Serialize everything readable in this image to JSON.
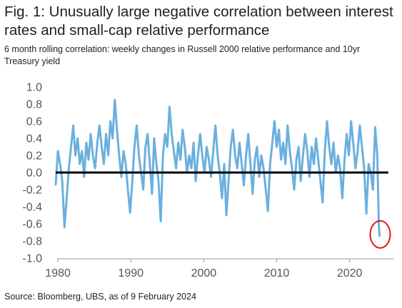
{
  "title": "Fig. 1: Unusually large negative correlation between interest rates and small-cap relative performance",
  "subtitle": "6 month rolling correlation: weekly changes in Russell 2000 relative performance and 10yr Treasury yield",
  "source": "Source: Bloomberg, UBS, as of 9 February 2024",
  "chart_data": {
    "type": "line",
    "title": "Fig. 1: Unusually large negative correlation between interest rates and small-cap relative performance",
    "subtitle": "6 month rolling correlation: weekly changes in Russell 2000 relative performance and 10yr Treasury yield",
    "xlabel": "",
    "ylabel": "",
    "xlim": [
      1979.5,
      2026.5
    ],
    "ylim": [
      -1.0,
      1.0
    ],
    "x_ticks": [
      1980,
      1990,
      2000,
      2010,
      2020
    ],
    "y_ticks": [
      1.0,
      0.8,
      0.6,
      0.4,
      0.2,
      0.0,
      -0.2,
      -0.4,
      -0.6,
      -0.8,
      -1.0
    ],
    "y_tick_labels": [
      "1.0",
      "0.8",
      "0.6",
      "0.4",
      "0.2",
      "0.0",
      "-0.2",
      "-0.4",
      "-0.6",
      "-0.8",
      "-1.0"
    ],
    "grid": false,
    "zero_line": true,
    "series_color": "#6ab0de",
    "zero_line_color": "#000000",
    "highlight_color": "#e0191b",
    "highlight": {
      "x": 2024.1,
      "y": -0.74
    },
    "series": [
      {
        "x": [
          1979.7,
          1980.0,
          1980.3,
          1980.6,
          1980.9,
          1981.2,
          1981.5,
          1981.8,
          1982.1,
          1982.4,
          1982.7,
          1983.0,
          1983.3,
          1983.6,
          1983.9,
          1984.2,
          1984.5,
          1984.8,
          1985.1,
          1985.4,
          1985.7,
          1986.0,
          1986.3,
          1986.6,
          1986.9,
          1987.2,
          1987.5,
          1987.8,
          1988.1,
          1988.4,
          1988.7,
          1989.0,
          1989.3,
          1989.6,
          1989.9,
          1990.2,
          1990.5,
          1990.8,
          1991.1,
          1991.4,
          1991.7,
          1992.0,
          1992.3,
          1992.6,
          1992.9,
          1993.2,
          1993.5,
          1993.8,
          1994.1,
          1994.4,
          1994.7,
          1995.0,
          1995.3,
          1995.6,
          1995.9,
          1996.2,
          1996.5,
          1996.8,
          1997.1,
          1997.4,
          1997.7,
          1998.0,
          1998.3,
          1998.6,
          1998.9,
          1999.2,
          1999.5,
          1999.8,
          2000.1,
          2000.4,
          2000.7,
          2001.0,
          2001.3,
          2001.6,
          2001.9,
          2002.2,
          2002.5,
          2002.8,
          2003.1,
          2003.4,
          2003.7,
          2004.0,
          2004.3,
          2004.6,
          2004.9,
          2005.2,
          2005.5,
          2005.8,
          2006.1,
          2006.4,
          2006.7,
          2007.0,
          2007.3,
          2007.6,
          2007.9,
          2008.2,
          2008.5,
          2008.8,
          2009.1,
          2009.4,
          2009.7,
          2010.0,
          2010.3,
          2010.6,
          2010.9,
          2011.2,
          2011.5,
          2011.8,
          2012.1,
          2012.4,
          2012.7,
          2013.0,
          2013.3,
          2013.6,
          2013.9,
          2014.2,
          2014.5,
          2014.8,
          2015.1,
          2015.4,
          2015.7,
          2016.0,
          2016.3,
          2016.6,
          2016.9,
          2017.2,
          2017.5,
          2017.8,
          2018.1,
          2018.4,
          2018.7,
          2019.0,
          2019.3,
          2019.6,
          2019.9,
          2020.2,
          2020.5,
          2020.8,
          2021.1,
          2021.4,
          2021.7,
          2022.0,
          2022.3,
          2022.6,
          2022.9,
          2023.2,
          2023.5,
          2023.8,
          2024.0,
          2024.1
        ],
        "values": [
          -0.14,
          0.25,
          0.1,
          -0.1,
          -0.64,
          -0.3,
          0.05,
          0.3,
          0.55,
          0.2,
          0.4,
          0.1,
          0.25,
          -0.05,
          0.35,
          0.15,
          0.45,
          0.2,
          0.05,
          0.35,
          0.55,
          0.3,
          0.1,
          0.45,
          0.2,
          0.6,
          0.4,
          0.85,
          0.5,
          0.2,
          -0.05,
          0.25,
          0.1,
          -0.2,
          -0.47,
          -0.1,
          0.3,
          0.55,
          0.2,
          0.0,
          -0.2,
          0.3,
          0.45,
          0.1,
          -0.25,
          0.4,
          0.1,
          -0.1,
          -0.57,
          0.2,
          0.45,
          0.3,
          0.77,
          0.45,
          0.25,
          0.05,
          0.35,
          0.15,
          0.5,
          0.3,
          0.0,
          0.2,
          0.05,
          0.35,
          -0.1,
          0.2,
          0.45,
          0.2,
          0.0,
          0.3,
          0.15,
          -0.05,
          0.25,
          0.55,
          0.2,
          0.0,
          -0.3,
          0.1,
          -0.5,
          -0.1,
          0.3,
          0.5,
          0.2,
          0.05,
          0.35,
          0.1,
          -0.15,
          0.2,
          0.45,
          0.1,
          -0.25,
          0.15,
          0.3,
          -0.05,
          0.2,
          0.05,
          -0.2,
          -0.45,
          0.1,
          0.35,
          0.6,
          0.3,
          0.5,
          0.15,
          0.35,
          0.1,
          0.55,
          0.25,
          0.05,
          -0.2,
          0.15,
          0.3,
          -0.1,
          0.2,
          0.45,
          0.25,
          -0.05,
          0.3,
          0.1,
          0.4,
          0.15,
          -0.1,
          -0.35,
          0.25,
          0.6,
          0.3,
          0.1,
          0.35,
          0.0,
          0.2,
          0.05,
          -0.3,
          0.15,
          0.45,
          0.2,
          0.6,
          0.35,
          0.05,
          0.25,
          0.55,
          0.3,
          0.05,
          -0.48,
          0.1,
          0.0,
          -0.2,
          0.53,
          0.2,
          -0.6,
          -0.74
        ]
      }
    ]
  }
}
